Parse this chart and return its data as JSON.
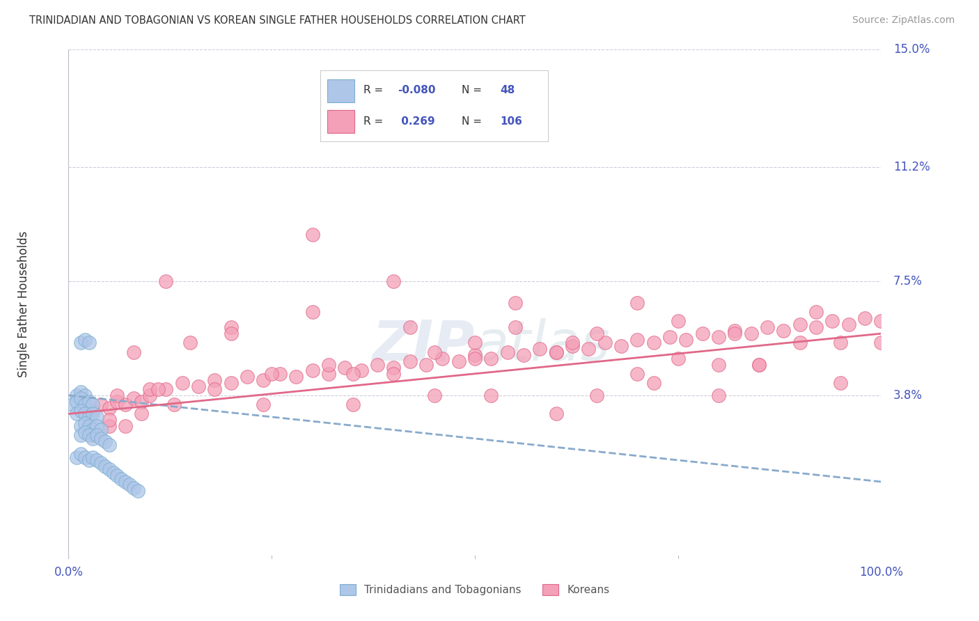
{
  "title": "TRINIDADIAN AND TOBAGONIAN VS KOREAN SINGLE FATHER HOUSEHOLDS CORRELATION CHART",
  "source": "Source: ZipAtlas.com",
  "ylabel": "Single Father Households",
  "xlim": [
    0.0,
    100.0
  ],
  "ylim": [
    -1.5,
    15.0
  ],
  "ymin_display": 0.0,
  "ymax_display": 15.0,
  "yticks": [
    3.8,
    7.5,
    11.2,
    15.0
  ],
  "ytick_labels": [
    "3.8%",
    "7.5%",
    "11.2%",
    "15.0%"
  ],
  "xticks": [
    0.0,
    100.0
  ],
  "xtick_labels": [
    "0.0%",
    "100.0%"
  ],
  "blue_R": -0.08,
  "blue_N": 48,
  "pink_R": 0.269,
  "pink_N": 106,
  "blue_color": "#aec6e8",
  "pink_color": "#f4a0b8",
  "blue_edge_color": "#7aaed0",
  "pink_edge_color": "#e06888",
  "blue_line_color": "#88aacc",
  "pink_line_color": "#e06888",
  "legend_label_blue": "Trinidadians and Tobagonians",
  "legend_label_pink": "Koreans",
  "watermark": "ZIPatlas",
  "background_color": "#ffffff",
  "grid_color": "#ccccdd",
  "title_color": "#333333",
  "axis_label_color": "#4455bb",
  "source_color": "#999999",
  "ylabel_color": "#333333",
  "blue_scatter_x": [
    1.5,
    2.0,
    2.5,
    1.0,
    1.5,
    2.0,
    0.5,
    1.0,
    1.5,
    2.0,
    2.5,
    3.0,
    1.0,
    1.5,
    2.0,
    2.5,
    3.0,
    3.5,
    1.5,
    2.0,
    2.5,
    3.0,
    3.5,
    4.0,
    1.5,
    2.0,
    2.5,
    3.0,
    3.5,
    4.0,
    4.5,
    5.0,
    1.0,
    1.5,
    2.0,
    2.5,
    3.0,
    3.5,
    4.0,
    4.5,
    5.0,
    5.5,
    6.0,
    6.5,
    7.0,
    7.5,
    8.0,
    8.5
  ],
  "blue_scatter_y": [
    5.5,
    5.6,
    5.5,
    3.8,
    3.9,
    3.8,
    3.5,
    3.6,
    3.7,
    3.5,
    3.6,
    3.5,
    3.2,
    3.3,
    3.2,
    3.1,
    3.2,
    3.1,
    2.8,
    2.9,
    2.8,
    2.7,
    2.8,
    2.7,
    2.5,
    2.6,
    2.5,
    2.4,
    2.5,
    2.4,
    2.3,
    2.2,
    1.8,
    1.9,
    1.8,
    1.7,
    1.8,
    1.7,
    1.6,
    1.5,
    1.4,
    1.3,
    1.2,
    1.1,
    1.0,
    0.9,
    0.8,
    0.7
  ],
  "pink_scatter_x": [
    2.0,
    3.0,
    4.0,
    5.0,
    6.0,
    7.0,
    8.0,
    9.0,
    10.0,
    12.0,
    14.0,
    16.0,
    18.0,
    20.0,
    22.0,
    24.0,
    26.0,
    28.0,
    30.0,
    32.0,
    34.0,
    36.0,
    38.0,
    40.0,
    42.0,
    44.0,
    46.0,
    48.0,
    50.0,
    52.0,
    54.0,
    56.0,
    58.0,
    60.0,
    62.0,
    64.0,
    66.0,
    68.0,
    70.0,
    72.0,
    74.0,
    76.0,
    78.0,
    80.0,
    82.0,
    84.0,
    86.0,
    88.0,
    90.0,
    92.0,
    94.0,
    96.0,
    98.0,
    100.0,
    5.0,
    10.0,
    15.0,
    20.0,
    25.0,
    30.0,
    35.0,
    40.0,
    45.0,
    50.0,
    55.0,
    60.0,
    65.0,
    70.0,
    75.0,
    80.0,
    85.0,
    90.0,
    95.0,
    30.0,
    50.0,
    70.0,
    6.0,
    8.0,
    12.0,
    18.0,
    24.0,
    32.0,
    42.0,
    52.0,
    62.0,
    72.0,
    82.0,
    92.0,
    35.0,
    45.0,
    55.0,
    65.0,
    75.0,
    85.0,
    95.0,
    20.0,
    40.0,
    60.0,
    80.0,
    100.0,
    3.0,
    5.0,
    7.0,
    9.0,
    11.0,
    13.0
  ],
  "pink_scatter_y": [
    3.2,
    3.3,
    3.5,
    3.4,
    3.6,
    3.5,
    3.7,
    3.6,
    3.8,
    4.0,
    4.2,
    4.1,
    4.3,
    4.2,
    4.4,
    4.3,
    4.5,
    4.4,
    4.6,
    4.5,
    4.7,
    4.6,
    4.8,
    4.7,
    4.9,
    4.8,
    5.0,
    4.9,
    5.1,
    5.0,
    5.2,
    5.1,
    5.3,
    5.2,
    5.4,
    5.3,
    5.5,
    5.4,
    5.6,
    5.5,
    5.7,
    5.6,
    5.8,
    5.7,
    5.9,
    5.8,
    6.0,
    5.9,
    6.1,
    6.0,
    6.2,
    6.1,
    6.3,
    6.2,
    2.8,
    4.0,
    5.5,
    6.0,
    4.5,
    6.5,
    3.5,
    7.5,
    3.8,
    5.0,
    6.8,
    3.2,
    5.8,
    4.5,
    6.2,
    3.8,
    4.8,
    5.5,
    4.2,
    9.0,
    5.5,
    6.8,
    3.8,
    5.2,
    7.5,
    4.0,
    3.5,
    4.8,
    6.0,
    3.8,
    5.5,
    4.2,
    5.8,
    6.5,
    4.5,
    5.2,
    6.0,
    3.8,
    5.0,
    4.8,
    5.5,
    5.8,
    4.5,
    5.2,
    4.8,
    5.5,
    2.5,
    3.0,
    2.8,
    3.2,
    4.0,
    3.5
  ]
}
